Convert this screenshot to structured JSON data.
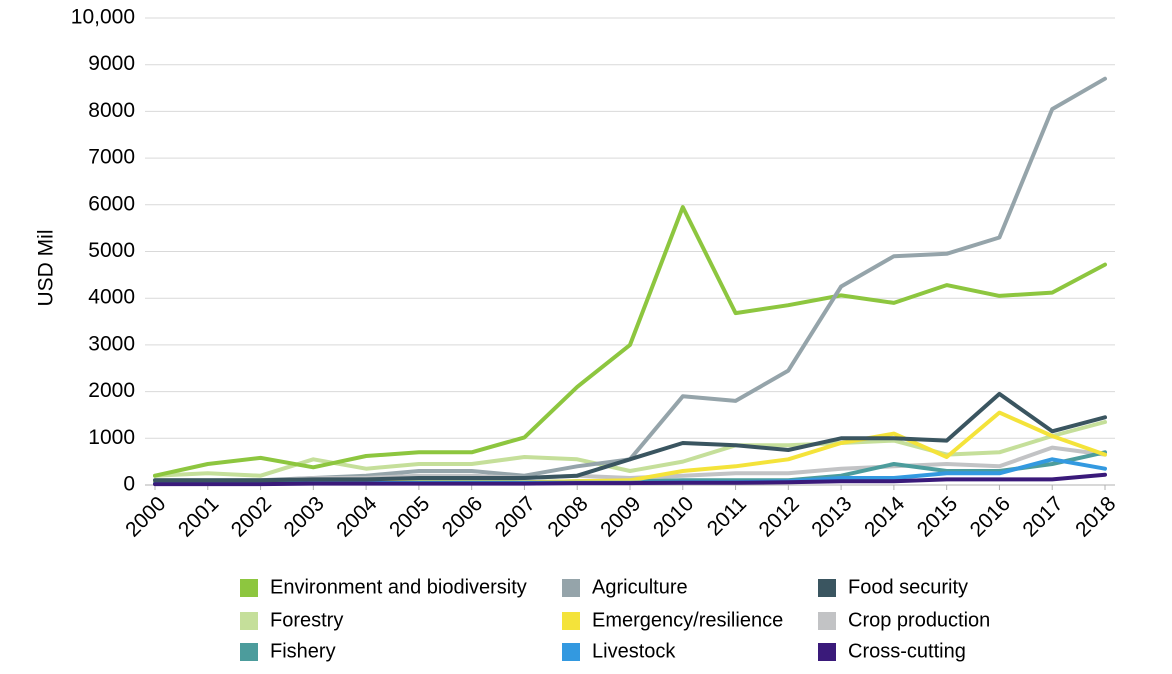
{
  "chart_data": {
    "type": "line",
    "title": "",
    "xlabel": "",
    "ylabel": "USD Mil",
    "ylim": [
      0,
      10000
    ],
    "yticks": [
      0,
      1000,
      2000,
      3000,
      4000,
      5000,
      6000,
      7000,
      8000,
      9000,
      10000
    ],
    "ytick_labels": [
      "0",
      "1000",
      "2000",
      "3000",
      "4000",
      "5000",
      "6000",
      "7000",
      "8000",
      "9000",
      "10,000"
    ],
    "grid": "horizontal",
    "legend_position": "bottom",
    "categories": [
      "2000",
      "2001",
      "2002",
      "2003",
      "2004",
      "2005",
      "2006",
      "2007",
      "2008",
      "2009",
      "2010",
      "2011",
      "2012",
      "2013",
      "2014",
      "2015",
      "2016",
      "2017",
      "2018"
    ],
    "series": [
      {
        "name": "Forestry",
        "color": "#c5df9a",
        "values": [
          200,
          250,
          200,
          550,
          350,
          450,
          450,
          600,
          550,
          300,
          500,
          850,
          850,
          900,
          950,
          650,
          700,
          1050,
          1350
        ]
      },
      {
        "name": "Environment and biodiversity",
        "color": "#8dc63f",
        "values": [
          200,
          450,
          580,
          380,
          620,
          700,
          700,
          1020,
          2100,
          3000,
          5950,
          3680,
          3850,
          4060,
          3900,
          4280,
          4050,
          4120,
          4720
        ]
      },
      {
        "name": "Agriculture",
        "color": "#95a4aa",
        "values": [
          100,
          100,
          100,
          150,
          200,
          300,
          300,
          200,
          400,
          550,
          1900,
          1800,
          2450,
          4250,
          4900,
          4950,
          5300,
          8050,
          8700
        ]
      },
      {
        "name": "Crop production",
        "color": "#c2c3c5",
        "values": [
          80,
          80,
          80,
          150,
          150,
          200,
          200,
          150,
          200,
          150,
          200,
          250,
          250,
          350,
          400,
          450,
          400,
          800,
          650
        ]
      },
      {
        "name": "Fishery",
        "color": "#4c9c9c",
        "values": [
          50,
          50,
          50,
          60,
          60,
          80,
          80,
          60,
          80,
          80,
          100,
          100,
          100,
          200,
          450,
          300,
          300,
          450,
          700
        ]
      },
      {
        "name": "Emergency/resilience",
        "color": "#f4e33a",
        "values": [
          50,
          50,
          50,
          50,
          50,
          60,
          60,
          60,
          80,
          100,
          300,
          400,
          550,
          900,
          1100,
          600,
          1550,
          1050,
          650
        ]
      },
      {
        "name": "Livestock",
        "color": "#3399e0",
        "values": [
          30,
          30,
          30,
          40,
          40,
          50,
          50,
          50,
          50,
          50,
          60,
          60,
          80,
          150,
          150,
          250,
          250,
          550,
          350
        ]
      },
      {
        "name": "Cross-cutting",
        "color": "#3a1a7a",
        "values": [
          20,
          20,
          20,
          30,
          30,
          30,
          30,
          30,
          40,
          40,
          50,
          50,
          60,
          80,
          80,
          120,
          120,
          120,
          220
        ]
      },
      {
        "name": "Food security",
        "color": "#3a5560",
        "values": [
          100,
          100,
          100,
          120,
          120,
          150,
          150,
          150,
          200,
          550,
          900,
          850,
          750,
          1000,
          1000,
          950,
          1950,
          1150,
          1450
        ]
      }
    ],
    "legend": [
      [
        "Environment and biodiversity",
        "Agriculture",
        "Food security"
      ],
      [
        "Forestry",
        "Emergency/resilience",
        "Crop production"
      ],
      [
        "Fishery",
        "Livestock",
        "Cross-cutting"
      ]
    ]
  }
}
